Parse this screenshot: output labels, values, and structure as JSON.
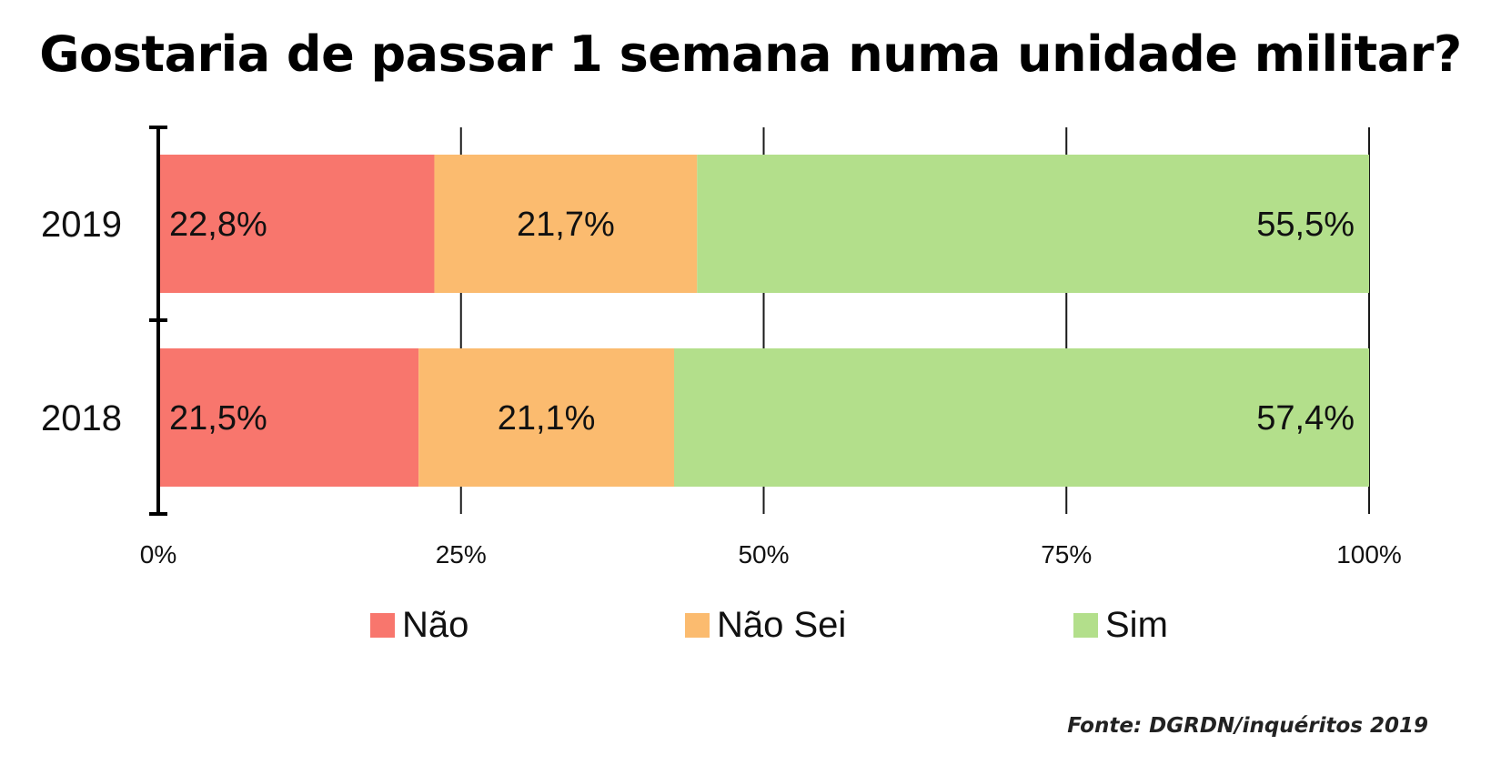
{
  "chart_data": {
    "type": "bar",
    "orientation": "horizontal",
    "stacked": true,
    "title": "Gostaria de passar 1 semana numa unidade militar?",
    "categories": [
      "2019",
      "2018"
    ],
    "series": [
      {
        "name": "Não",
        "color": "#f8766d",
        "values": [
          22.8,
          21.5
        ],
        "labels": [
          "22,8%",
          "21,5%"
        ]
      },
      {
        "name": "Não Sei",
        "color": "#fbbb6f",
        "values": [
          21.7,
          21.1
        ],
        "labels": [
          "21,7%",
          "21,1%"
        ]
      },
      {
        "name": "Sim",
        "color": "#b3df8b",
        "values": [
          55.5,
          57.4
        ],
        "labels": [
          "55,5%",
          "57,4%"
        ]
      }
    ],
    "xlim": [
      0,
      100
    ],
    "x_ticks": [
      0,
      25,
      50,
      75,
      100
    ],
    "x_tick_labels": [
      "0%",
      "25%",
      "50%",
      "75%",
      "100%"
    ],
    "grid": true,
    "legend_position": "bottom"
  },
  "source": "Fonte: DGRDN/inquéritos 2019"
}
